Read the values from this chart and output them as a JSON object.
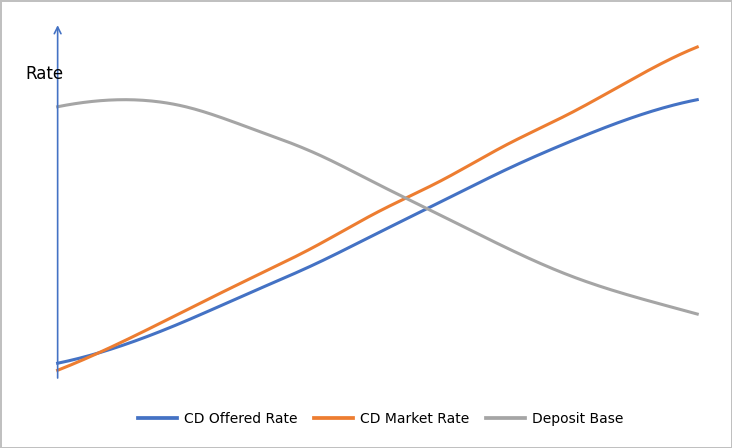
{
  "title": "",
  "ylabel": "Rate",
  "background_color": "#ffffff",
  "x": [
    0,
    1,
    2,
    3,
    4,
    5,
    6,
    7,
    8,
    9,
    10
  ],
  "cd_offered_rate": [
    0.05,
    0.1,
    0.17,
    0.25,
    0.33,
    0.42,
    0.51,
    0.6,
    0.68,
    0.75,
    0.8
  ],
  "cd_market_rate": [
    0.03,
    0.11,
    0.2,
    0.29,
    0.38,
    0.48,
    0.57,
    0.67,
    0.76,
    0.86,
    0.95
  ],
  "deposit_base": [
    0.78,
    0.8,
    0.78,
    0.72,
    0.65,
    0.56,
    0.47,
    0.38,
    0.3,
    0.24,
    0.19
  ],
  "cd_offered_color": "#4472c4",
  "cd_market_color": "#ed7d31",
  "deposit_base_color": "#a5a5a5",
  "axis_color": "#4472c4",
  "line_width": 2.2,
  "legend_labels": [
    "CD Offered Rate",
    "CD Market Rate",
    "Deposit Base"
  ],
  "figsize": [
    7.32,
    4.48
  ],
  "dpi": 100,
  "ylim_min": 0.0,
  "ylim_max": 1.02,
  "xlim_min": -0.1,
  "xlim_max": 10.2
}
